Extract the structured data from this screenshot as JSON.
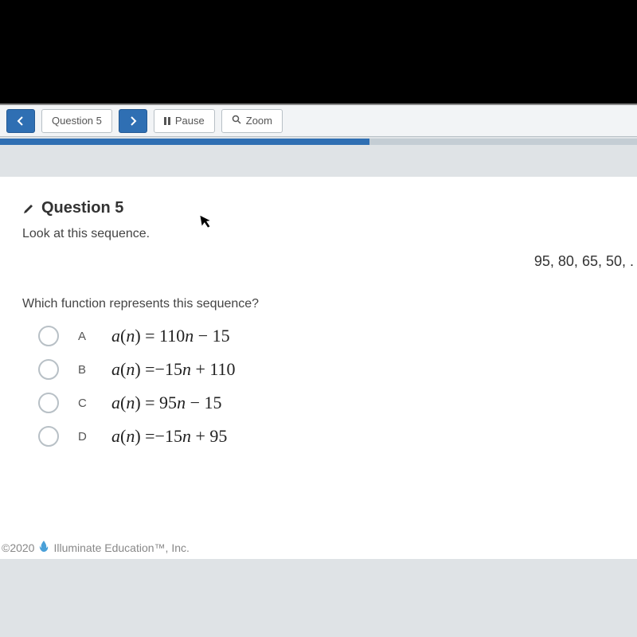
{
  "toolbar": {
    "question_label": "Question 5",
    "pause_label": "Pause",
    "zoom_label": "Zoom"
  },
  "question": {
    "title": "Question 5",
    "prompt": "Look at this sequence.",
    "sequence": "95, 80, 65, 50, .",
    "sub_prompt": "Which function represents this sequence?",
    "options": [
      {
        "letter": "A",
        "formula_html": "<span class='fn'>a</span>(<span class='fn'>n</span>) = 110<span class='fn'>n</span> − 15"
      },
      {
        "letter": "B",
        "formula_html": "<span class='fn'>a</span>(<span class='fn'>n</span>) =−15<span class='fn'>n</span> + 110"
      },
      {
        "letter": "C",
        "formula_html": "<span class='fn'>a</span>(<span class='fn'>n</span>) = 95<span class='fn'>n</span> − 15"
      },
      {
        "letter": "D",
        "formula_html": "<span class='fn'>a</span>(<span class='fn'>n</span>) =−15<span class='fn'>n</span> + 95"
      }
    ]
  },
  "footer": {
    "copyright": "©2020",
    "brand": "Illuminate Education™, Inc."
  }
}
